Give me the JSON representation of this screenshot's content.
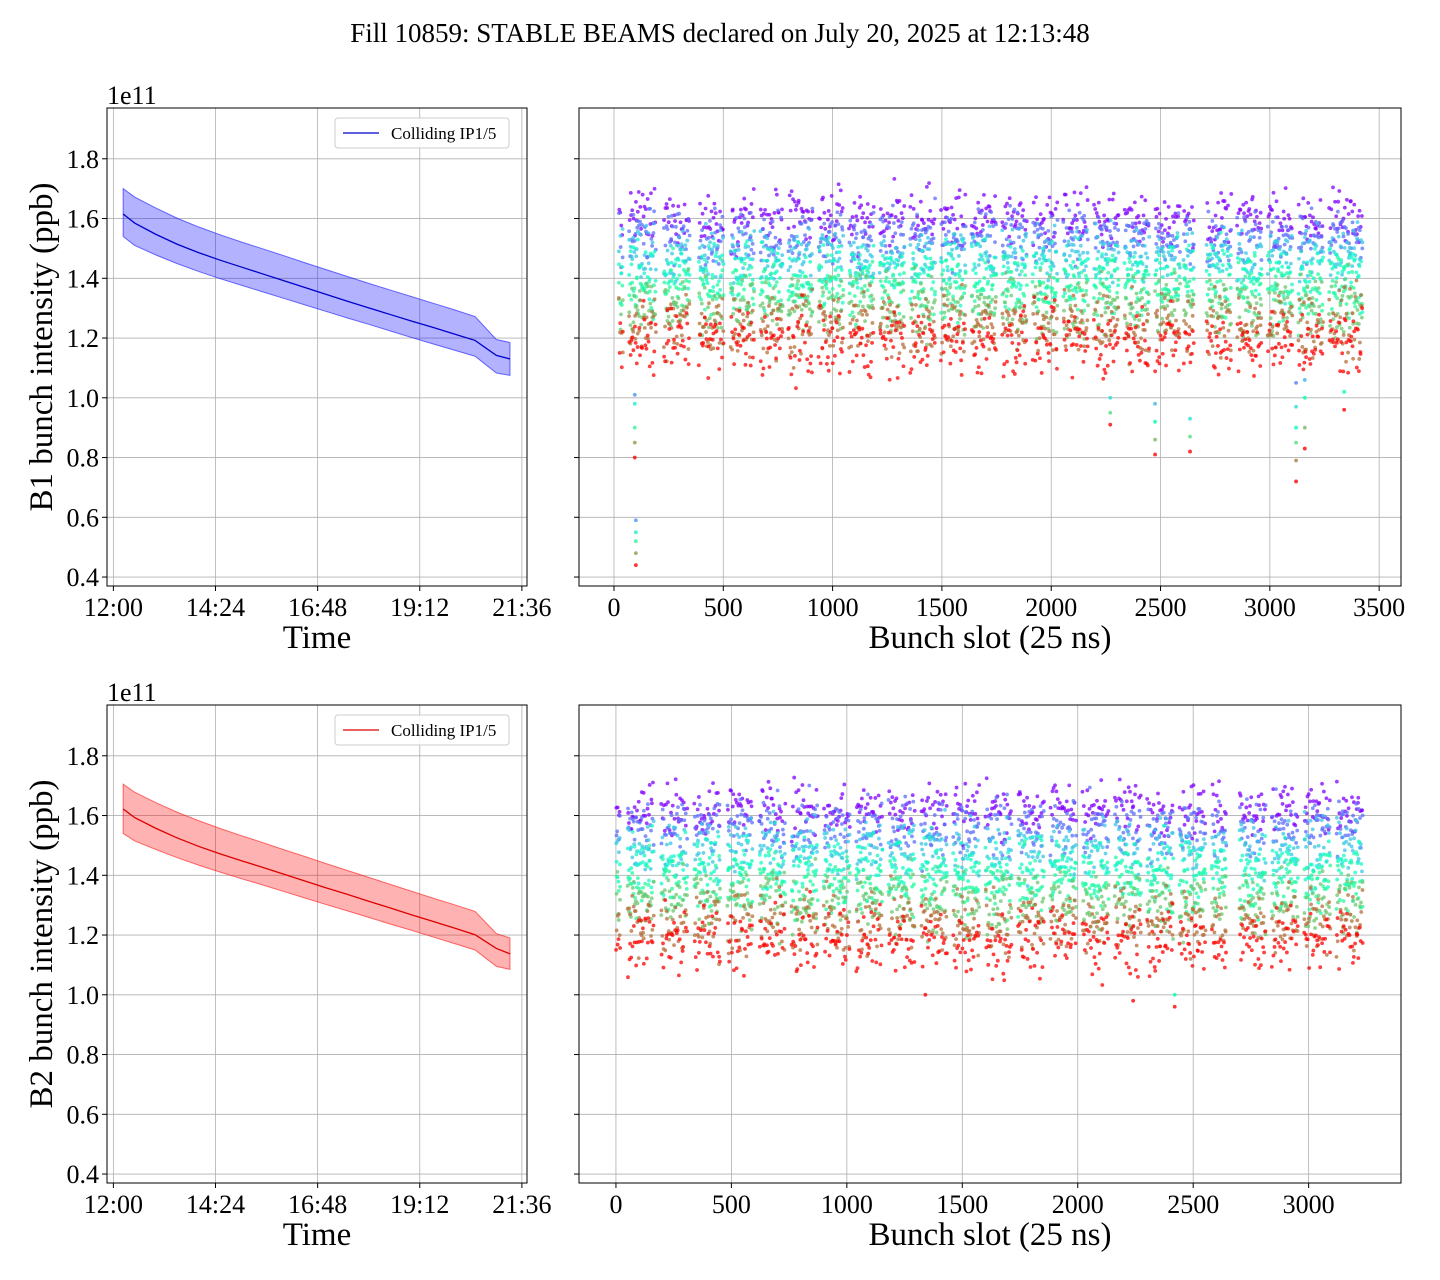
{
  "figure": {
    "title": "Fill 10859: STABLE BEAMS declared on July 20, 2025 at 12:13:48"
  },
  "chart_data": [
    {
      "type": "line",
      "panel": "B1-time",
      "xlabel": "Time",
      "ylabel": "B1 bunch intensity (ppb)",
      "y_offset_text": "1e11",
      "x_tick_labels": [
        "12:00",
        "14:24",
        "16:48",
        "19:12",
        "21:36"
      ],
      "x_tick_hours": [
        12.0,
        14.4,
        16.8,
        19.2,
        21.6
      ],
      "xlim": [
        11.85,
        21.72
      ],
      "ylim": [
        0.37,
        1.97
      ],
      "y_ticks": [
        0.4,
        0.6,
        0.8,
        1.0,
        1.2,
        1.4,
        1.6,
        1.8
      ],
      "y_tick_labels": [
        "0.4",
        "0.6",
        "0.8",
        "1.0",
        "1.2",
        "1.4",
        "1.6",
        "1.8"
      ],
      "grid": true,
      "legend": {
        "placement": "upper right",
        "entries": [
          "Colliding IP1/5"
        ]
      },
      "series": [
        {
          "name": "Colliding IP1/5",
          "color": "#0000cc",
          "band_color": "#0000ff",
          "x": [
            12.23,
            12.5,
            13.0,
            13.5,
            14.0,
            14.5,
            15.0,
            15.5,
            16.0,
            16.5,
            17.0,
            17.5,
            18.0,
            18.5,
            19.0,
            19.5,
            20.0,
            20.5,
            21.0,
            21.32
          ],
          "mean": [
            1.615,
            1.585,
            1.547,
            1.514,
            1.486,
            1.461,
            1.438,
            1.415,
            1.392,
            1.369,
            1.346,
            1.323,
            1.301,
            1.279,
            1.257,
            1.236,
            1.214,
            1.192,
            1.142,
            1.13
          ],
          "upper": [
            1.7,
            1.672,
            1.635,
            1.601,
            1.572,
            1.546,
            1.522,
            1.499,
            1.476,
            1.452,
            1.429,
            1.406,
            1.383,
            1.361,
            1.339,
            1.317,
            1.295,
            1.272,
            1.195,
            1.185
          ],
          "lower": [
            1.54,
            1.51,
            1.478,
            1.449,
            1.423,
            1.399,
            1.377,
            1.355,
            1.333,
            1.311,
            1.289,
            1.267,
            1.246,
            1.224,
            1.202,
            1.181,
            1.16,
            1.139,
            1.083,
            1.075
          ]
        }
      ]
    },
    {
      "type": "scatter",
      "panel": "B1-slot",
      "xlabel": "Bunch slot (25 ns)",
      "ylabel": "",
      "xlim": [
        -160,
        3600
      ],
      "ylim": [
        0.37,
        1.97
      ],
      "x_ticks": [
        0,
        500,
        1000,
        1500,
        2000,
        2500,
        3000,
        3500
      ],
      "x_tick_labels": [
        "0",
        "500",
        "1000",
        "1500",
        "2000",
        "2500",
        "3000",
        "3500"
      ],
      "grid": true,
      "colormap": "rainbow (violet = early time, red = late time)",
      "trains": [
        [
          22,
          38
        ],
        [
          68,
          190
        ],
        [
          228,
          345
        ],
        [
          388,
          500
        ],
        [
          533,
          640
        ],
        [
          668,
          770
        ],
        [
          795,
          905
        ],
        [
          935,
          1045
        ],
        [
          1075,
          1185
        ],
        [
          1215,
          1325
        ],
        [
          1355,
          1465
        ],
        [
          1495,
          1605
        ],
        [
          1635,
          1745
        ],
        [
          1775,
          1885
        ],
        [
          1915,
          2025
        ],
        [
          2055,
          2165
        ],
        [
          2195,
          2305
        ],
        [
          2335,
          2445
        ],
        [
          2475,
          2585
        ],
        [
          2605,
          2650
        ],
        [
          2710,
          2820
        ],
        [
          2850,
          2960
        ],
        [
          2990,
          3100
        ],
        [
          3130,
          3240
        ],
        [
          3270,
          3420
        ]
      ],
      "intensity_range_start": [
        1.48,
        1.72
      ],
      "intensity_range_end": [
        1.09,
        1.28
      ],
      "outliers": [
        {
          "slot": 100,
          "values": [
            0.44,
            0.48,
            0.52,
            0.55,
            0.59
          ]
        },
        {
          "slot": 95,
          "values": [
            0.8,
            0.85,
            0.9,
            0.98,
            1.01
          ]
        },
        {
          "slot": 2270,
          "values": [
            0.91,
            0.95,
            1.0
          ]
        },
        {
          "slot": 2475,
          "values": [
            0.81,
            0.86,
            0.92,
            0.98
          ]
        },
        {
          "slot": 2635,
          "values": [
            0.82,
            0.87,
            0.93
          ]
        },
        {
          "slot": 3120,
          "values": [
            0.72,
            0.79,
            0.85,
            0.9,
            0.97,
            1.05
          ]
        },
        {
          "slot": 3160,
          "values": [
            0.83,
            0.9,
            1.0,
            1.06
          ]
        },
        {
          "slot": 3340,
          "values": [
            0.96,
            1.02
          ]
        }
      ]
    },
    {
      "type": "line",
      "panel": "B2-time",
      "xlabel": "Time",
      "ylabel": "B2 bunch intensity (ppb)",
      "y_offset_text": "1e11",
      "x_tick_labels": [
        "12:00",
        "14:24",
        "16:48",
        "19:12",
        "21:36"
      ],
      "x_tick_hours": [
        12.0,
        14.4,
        16.8,
        19.2,
        21.6
      ],
      "xlim": [
        11.85,
        21.72
      ],
      "ylim": [
        0.37,
        1.97
      ],
      "y_ticks": [
        0.4,
        0.6,
        0.8,
        1.0,
        1.2,
        1.4,
        1.6,
        1.8
      ],
      "y_tick_labels": [
        "0.4",
        "0.6",
        "0.8",
        "1.0",
        "1.2",
        "1.4",
        "1.6",
        "1.8"
      ],
      "grid": true,
      "legend": {
        "placement": "upper right",
        "entries": [
          "Colliding IP1/5"
        ]
      },
      "series": [
        {
          "name": "Colliding IP1/5",
          "color": "#dd0000",
          "band_color": "#ff0000",
          "x": [
            12.23,
            12.5,
            13.0,
            13.5,
            14.0,
            14.5,
            15.0,
            15.5,
            16.0,
            16.5,
            17.0,
            17.5,
            18.0,
            18.5,
            19.0,
            19.5,
            20.0,
            20.5,
            21.0,
            21.32
          ],
          "mean": [
            1.622,
            1.593,
            1.557,
            1.525,
            1.497,
            1.472,
            1.449,
            1.427,
            1.404,
            1.381,
            1.358,
            1.336,
            1.313,
            1.291,
            1.268,
            1.246,
            1.224,
            1.201,
            1.155,
            1.137
          ],
          "upper": [
            1.705,
            1.678,
            1.643,
            1.611,
            1.583,
            1.557,
            1.533,
            1.51,
            1.486,
            1.463,
            1.439,
            1.416,
            1.393,
            1.37,
            1.347,
            1.324,
            1.302,
            1.279,
            1.205,
            1.19
          ],
          "lower": [
            1.54,
            1.515,
            1.486,
            1.459,
            1.434,
            1.411,
            1.389,
            1.368,
            1.346,
            1.324,
            1.302,
            1.281,
            1.259,
            1.237,
            1.216,
            1.194,
            1.172,
            1.15,
            1.095,
            1.085
          ]
        }
      ]
    },
    {
      "type": "scatter",
      "panel": "B2-slot",
      "xlabel": "Bunch slot (25 ns)",
      "ylabel": "",
      "xlim": [
        -160,
        3400
      ],
      "ylim": [
        0.37,
        1.97
      ],
      "x_ticks": [
        0,
        500,
        1000,
        1500,
        2000,
        2500,
        3000
      ],
      "x_tick_labels": [
        "0",
        "500",
        "1000",
        "1500",
        "2000",
        "2500",
        "3000"
      ],
      "grid": true,
      "colormap": "rainbow (violet = early time, red = late time)",
      "trains": [
        [
          0,
          15
        ],
        [
          50,
          160
        ],
        [
          195,
          305
        ],
        [
          338,
          450
        ],
        [
          482,
          590
        ],
        [
          620,
          730
        ],
        [
          760,
          870
        ],
        [
          900,
          1010
        ],
        [
          1040,
          1150
        ],
        [
          1180,
          1290
        ],
        [
          1320,
          1430
        ],
        [
          1460,
          1570
        ],
        [
          1600,
          1710
        ],
        [
          1740,
          1850
        ],
        [
          1880,
          1990
        ],
        [
          2020,
          2130
        ],
        [
          2160,
          2270
        ],
        [
          2300,
          2410
        ],
        [
          2440,
          2550
        ],
        [
          2580,
          2640
        ],
        [
          2700,
          2810
        ],
        [
          2840,
          2950
        ],
        [
          2980,
          3090
        ],
        [
          3120,
          3230
        ]
      ],
      "intensity_range_start": [
        1.5,
        1.75
      ],
      "intensity_range_end": [
        1.09,
        1.27
      ],
      "outliers": [
        {
          "slot": 2420,
          "values": [
            0.96,
            1.0
          ]
        },
        {
          "slot": 2240,
          "values": [
            0.98
          ]
        },
        {
          "slot": 1340,
          "values": [
            1.0
          ]
        }
      ]
    }
  ]
}
